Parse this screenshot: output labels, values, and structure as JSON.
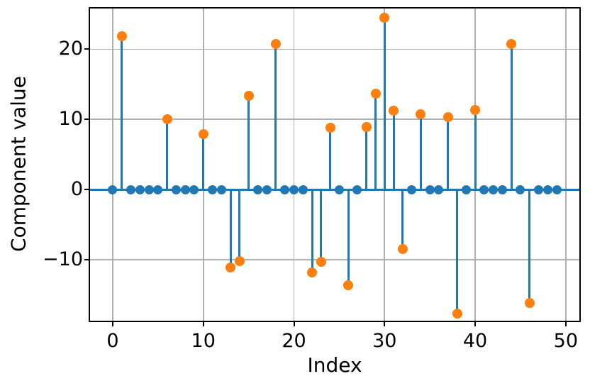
{
  "figure": {
    "background": "#ffffff"
  },
  "chart_data": {
    "type": "stem",
    "title": "",
    "xlabel": "Index",
    "ylabel": "Component value",
    "x_start": 0,
    "values": [
      0,
      21.9,
      0,
      0,
      0,
      0,
      10.0,
      0,
      0,
      0,
      7.9,
      0,
      0,
      -11.1,
      -10.2,
      13.4,
      0,
      0,
      20.7,
      0,
      0,
      0,
      -11.8,
      -10.3,
      8.8,
      0,
      -13.6,
      0,
      8.9,
      13.7,
      24.5,
      11.2,
      -8.5,
      0,
      10.7,
      0,
      0,
      10.3,
      -17.7,
      0,
      11.3,
      0,
      0,
      0,
      20.7,
      0,
      -16.2,
      0,
      0,
      0
    ],
    "xlim": [
      -2.5,
      51.5
    ],
    "ylim": [
      -18.7,
      25.8
    ],
    "xticks": [
      0,
      10,
      20,
      30,
      40,
      50
    ],
    "yticks": [
      -10,
      0,
      10,
      20
    ],
    "xtick_labels": [
      "0",
      "10",
      "20",
      "30",
      "40",
      "50"
    ],
    "ytick_labels": [
      "−10",
      "0",
      "10",
      "20"
    ],
    "grid": true,
    "legend": null,
    "colors": {
      "stem_line": "#1f77b4",
      "baseline": "#1f77b4",
      "nonzero_marker": "#ff7f0e",
      "zero_marker": "#1f77b4",
      "grid": "#b0b0b0",
      "spine": "#000000",
      "text": "#000000"
    }
  }
}
